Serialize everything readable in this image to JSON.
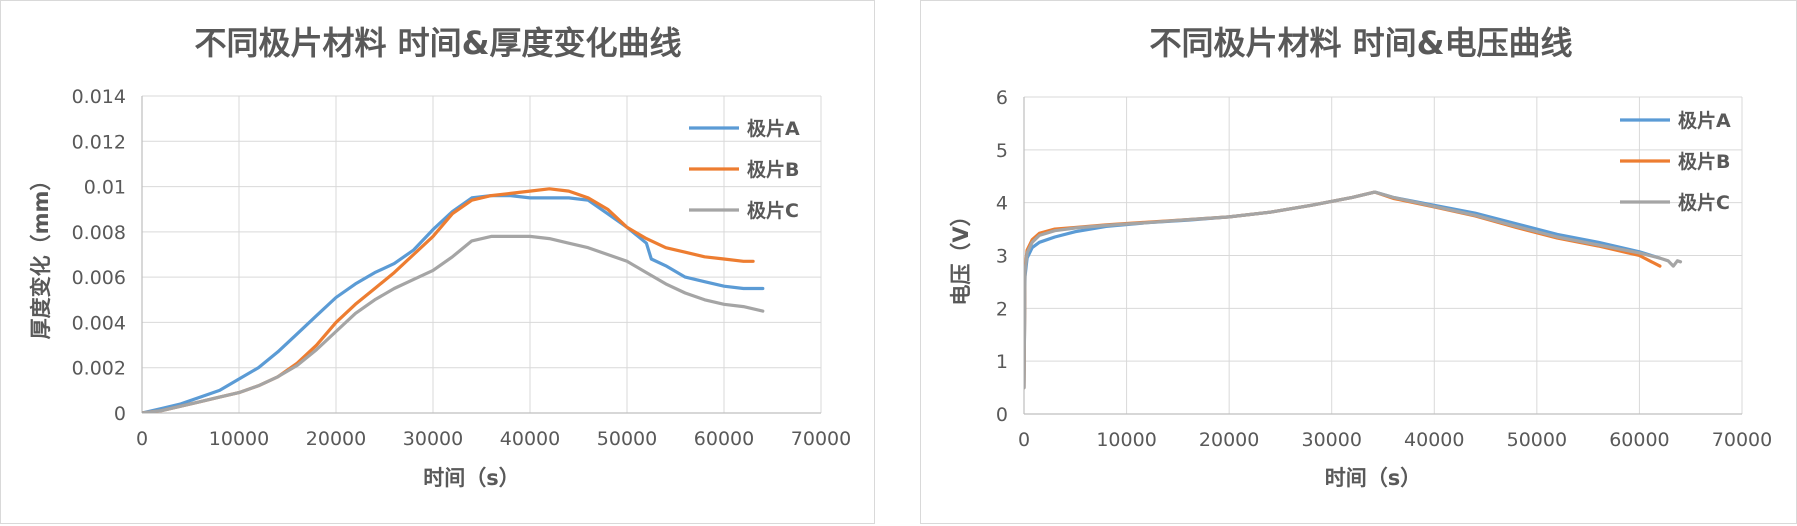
{
  "colors": {
    "A": "#5b9bd5",
    "B": "#ed7d31",
    "C": "#a5a5a5",
    "grid": "#d9d9d9",
    "text": "#595959"
  },
  "chart_data": [
    {
      "type": "line",
      "title": "不同极片材料  时间&厚度变化曲线",
      "xlabel": "时间（s）",
      "ylabel": "厚度变化（mm）",
      "xlim": [
        0,
        70000
      ],
      "ylim": [
        0,
        0.014
      ],
      "xticks": [
        "0",
        "10000",
        "20000",
        "30000",
        "40000",
        "50000",
        "60000",
        "70000"
      ],
      "yticks": [
        "0",
        "0.002",
        "0.004",
        "0.006",
        "0.008",
        "0.01",
        "0.012",
        "0.014"
      ],
      "legend_position": "top-right",
      "series": [
        {
          "name": "极片A",
          "color": "#5b9bd5",
          "x": [
            0,
            2000,
            4000,
            6000,
            8000,
            10000,
            12000,
            14000,
            16000,
            18000,
            20000,
            22000,
            24000,
            26000,
            28000,
            30000,
            32000,
            34000,
            36000,
            38000,
            40000,
            42000,
            44000,
            46000,
            48000,
            50000,
            52000,
            52500,
            54000,
            56000,
            58000,
            60000,
            62000,
            64000
          ],
          "y": [
            0,
            0.0002,
            0.0004,
            0.0007,
            0.001,
            0.0015,
            0.002,
            0.0027,
            0.0035,
            0.0043,
            0.0051,
            0.0057,
            0.0062,
            0.0066,
            0.0072,
            0.0081,
            0.0089,
            0.0095,
            0.0096,
            0.0096,
            0.0095,
            0.0095,
            0.0095,
            0.0094,
            0.0088,
            0.0082,
            0.0075,
            0.0068,
            0.0065,
            0.006,
            0.0058,
            0.0056,
            0.0055,
            0.0055
          ]
        },
        {
          "name": "极片B",
          "color": "#ed7d31",
          "x": [
            0,
            2000,
            4000,
            6000,
            8000,
            10000,
            12000,
            14000,
            16000,
            18000,
            20000,
            22000,
            24000,
            26000,
            28000,
            30000,
            32000,
            34000,
            36000,
            38000,
            40000,
            42000,
            44000,
            46000,
            48000,
            50000,
            52000,
            54000,
            56000,
            58000,
            60000,
            62000,
            63000
          ],
          "y": [
            0,
            0.0001,
            0.0003,
            0.0005,
            0.0007,
            0.0009,
            0.0012,
            0.0016,
            0.0022,
            0.003,
            0.004,
            0.0048,
            0.0055,
            0.0062,
            0.007,
            0.0078,
            0.0088,
            0.0094,
            0.0096,
            0.0097,
            0.0098,
            0.0099,
            0.0098,
            0.0095,
            0.009,
            0.0082,
            0.0077,
            0.0073,
            0.0071,
            0.0069,
            0.0068,
            0.0067,
            0.0067
          ]
        },
        {
          "name": "极片C",
          "color": "#a5a5a5",
          "x": [
            0,
            2000,
            4000,
            6000,
            8000,
            10000,
            12000,
            14000,
            16000,
            18000,
            20000,
            22000,
            24000,
            26000,
            28000,
            30000,
            32000,
            34000,
            36000,
            38000,
            40000,
            42000,
            44000,
            46000,
            48000,
            50000,
            52000,
            54000,
            56000,
            58000,
            60000,
            62000,
            64000
          ],
          "y": [
            0,
            0.0001,
            0.0003,
            0.0005,
            0.0007,
            0.0009,
            0.0012,
            0.0016,
            0.0021,
            0.0028,
            0.0036,
            0.0044,
            0.005,
            0.0055,
            0.0059,
            0.0063,
            0.0069,
            0.0076,
            0.0078,
            0.0078,
            0.0078,
            0.0077,
            0.0075,
            0.0073,
            0.007,
            0.0067,
            0.0062,
            0.0057,
            0.0053,
            0.005,
            0.0048,
            0.0047,
            0.0045
          ]
        }
      ]
    },
    {
      "type": "line",
      "title": "不同极片材料    时间&电压曲线",
      "xlabel": "时间（s）",
      "ylabel": "电压（V）",
      "xlim": [
        0,
        70000
      ],
      "ylim": [
        0,
        6
      ],
      "xticks": [
        "0",
        "10000",
        "20000",
        "30000",
        "40000",
        "50000",
        "60000",
        "70000"
      ],
      "yticks": [
        "0",
        "1",
        "2",
        "3",
        "4",
        "5",
        "6"
      ],
      "legend_position": "top-right",
      "series": [
        {
          "name": "极片A",
          "color": "#5b9bd5",
          "x": [
            0,
            100,
            300,
            800,
            1500,
            3000,
            5000,
            8000,
            12000,
            16000,
            20000,
            24000,
            28000,
            32000,
            34200,
            36000,
            40000,
            44000,
            48000,
            52000,
            56000,
            60000,
            62000
          ],
          "y": [
            0.5,
            2.6,
            2.95,
            3.15,
            3.25,
            3.35,
            3.45,
            3.55,
            3.62,
            3.67,
            3.73,
            3.82,
            3.95,
            4.1,
            4.2,
            4.1,
            3.95,
            3.8,
            3.6,
            3.4,
            3.25,
            3.07,
            2.95
          ]
        },
        {
          "name": "极片B",
          "color": "#ed7d31",
          "x": [
            0,
            100,
            300,
            800,
            1500,
            3000,
            5000,
            8000,
            12000,
            16000,
            20000,
            24000,
            28000,
            32000,
            34200,
            36000,
            40000,
            44000,
            48000,
            52000,
            56000,
            60000,
            62000
          ],
          "y": [
            0.5,
            2.75,
            3.1,
            3.3,
            3.42,
            3.5,
            3.53,
            3.58,
            3.63,
            3.68,
            3.73,
            3.82,
            3.95,
            4.1,
            4.2,
            4.08,
            3.92,
            3.75,
            3.53,
            3.33,
            3.18,
            3.0,
            2.8
          ]
        },
        {
          "name": "极片C",
          "color": "#a5a5a5",
          "x": [
            0,
            100,
            300,
            800,
            1500,
            3000,
            5000,
            8000,
            12000,
            16000,
            20000,
            24000,
            28000,
            32000,
            34200,
            36000,
            40000,
            44000,
            48000,
            52000,
            56000,
            60000,
            62000,
            62800,
            63300,
            63700,
            64000
          ],
          "y": [
            0.5,
            2.7,
            3.05,
            3.25,
            3.38,
            3.47,
            3.52,
            3.57,
            3.62,
            3.68,
            3.73,
            3.82,
            3.95,
            4.1,
            4.2,
            4.1,
            3.93,
            3.76,
            3.55,
            3.35,
            3.2,
            3.05,
            2.95,
            2.9,
            2.8,
            2.9,
            2.88
          ]
        }
      ]
    }
  ]
}
